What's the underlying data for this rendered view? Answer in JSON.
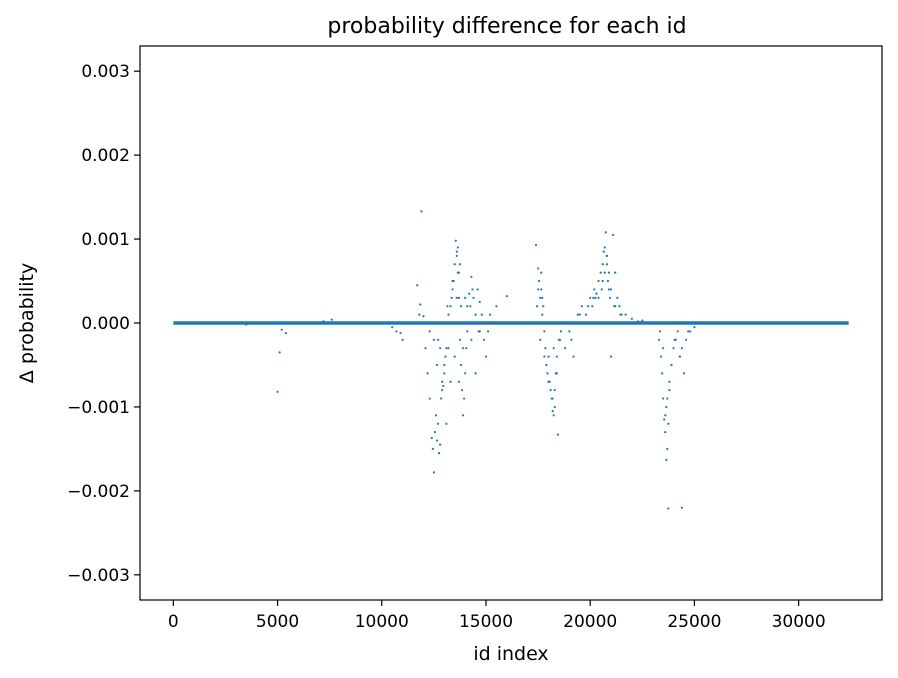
{
  "chart_data": {
    "type": "scatter",
    "title": "probability difference for each id",
    "xlabel": "id index",
    "ylabel": "Δ probability",
    "xlim": [
      -1600,
      34000
    ],
    "ylim": [
      -0.0033,
      0.0033
    ],
    "xticks": [
      0,
      5000,
      10000,
      15000,
      20000,
      25000,
      30000
    ],
    "xtick_labels": [
      "0",
      "5000",
      "10000",
      "15000",
      "20000",
      "25000",
      "30000"
    ],
    "yticks": [
      -0.003,
      -0.002,
      -0.001,
      0.0,
      0.001,
      0.002,
      0.003
    ],
    "ytick_labels": [
      "−0.003",
      "−0.002",
      "−0.001",
      "0.000",
      "0.001",
      "0.002",
      "0.003"
    ],
    "grid": false,
    "legend": "none",
    "marker_color": "#1f77b4",
    "baseline": {
      "x_start": 0,
      "x_end": 32400,
      "y": 0.0
    },
    "series": [
      {
        "x": [
          5000,
          5100,
          5200,
          5400,
          7200,
          7600,
          3500,
          10500,
          10700,
          10900,
          11000,
          11700,
          11850,
          11900,
          12000,
          12100,
          12200,
          12300,
          12400,
          12500,
          12550,
          12600,
          12650,
          12700,
          12750,
          12800,
          12850,
          12900,
          12950,
          13000,
          13050,
          13100,
          13200,
          13300,
          13400,
          13450,
          13500,
          13550,
          13600,
          13650,
          13700,
          13750,
          13800,
          13850,
          13900,
          13950,
          14000,
          14050,
          14100,
          14200,
          14300,
          14400,
          14500,
          14600,
          14700,
          14800,
          14900,
          15000,
          15100,
          15200,
          15500,
          16000,
          17400,
          17500,
          17550,
          17600,
          17650,
          17700,
          17750,
          17800,
          17850,
          17900,
          17950,
          18000,
          18050,
          18100,
          18150,
          18200,
          18250,
          18300,
          18350,
          18400,
          18450,
          18500,
          18600,
          18800,
          19000,
          19200,
          19400,
          19600,
          19800,
          20000,
          20100,
          20200,
          20300,
          20400,
          20500,
          20600,
          20650,
          20700,
          20750,
          20800,
          20850,
          20900,
          20950,
          21000,
          21100,
          21200,
          21300,
          21400,
          21500,
          21700,
          22000,
          22300,
          23300,
          23400,
          23450,
          23500,
          23550,
          23600,
          23650,
          23700,
          23750,
          23800,
          23900,
          24000,
          24100,
          24200,
          24300,
          24400,
          24500,
          24600,
          24800,
          25000,
          12500,
          12650,
          12900,
          13100,
          13300,
          13500,
          13700,
          13900,
          14100,
          14300,
          14500,
          14700,
          12800,
          13000,
          13200,
          13400,
          13600,
          13800,
          14000,
          17600,
          17800,
          18000,
          18200,
          18400,
          20400,
          20600,
          20800,
          21000,
          21200,
          23500,
          23700,
          23900,
          24100,
          24300,
          13650,
          13750,
          13600,
          13700,
          20700,
          20900,
          20800,
          17500,
          17700,
          18300,
          23600,
          23800,
          11800,
          12300,
          12700,
          13350,
          14250,
          14650,
          17450,
          18250,
          18550,
          19100,
          19500,
          19900,
          20150,
          20550,
          21150,
          21450,
          22500,
          23350,
          23650,
          24050,
          24700,
          12450,
          13150,
          14350,
          17650,
          20250
        ],
        "y": [
          -0.00082,
          -0.00035,
          -8e-05,
          -0.00012,
          2e-05,
          4e-05,
          -2e-05,
          -5e-05,
          -0.0001,
          -0.00012,
          -0.0002,
          0.00045,
          0.00022,
          0.00133,
          8e-05,
          -0.0003,
          -0.0006,
          -0.0009,
          -0.00137,
          -0.00178,
          -0.0013,
          -0.0011,
          -0.0014,
          -0.0012,
          -0.00155,
          -0.00145,
          -0.0009,
          -0.0007,
          -0.00075,
          -0.0005,
          -0.0004,
          -0.0003,
          0.0001,
          0.0002,
          0.0004,
          0.0005,
          0.0007,
          0.00098,
          0.00085,
          0.0006,
          0.0003,
          -0.0002,
          -0.0005,
          -0.0008,
          -0.0011,
          -0.0009,
          -0.0006,
          -0.0003,
          0.0002,
          0.00035,
          0.00055,
          0.0003,
          0.0001,
          0.0004,
          0.00025,
          0.0001,
          -0.0002,
          -0.0004,
          -0.0001,
          0.0001,
          0.0002,
          0.00032,
          0.00093,
          0.00065,
          0.0005,
          0.0003,
          0.0004,
          0.0001,
          0.0002,
          -0.0001,
          -0.0003,
          -0.0005,
          -0.0006,
          -0.0004,
          -0.0007,
          -0.0008,
          -0.0009,
          -0.00105,
          -0.0011,
          -0.001,
          -0.0006,
          -0.0004,
          -0.00133,
          -0.0002,
          -0.0001,
          -0.0003,
          -0.0001,
          -0.0004,
          0.0001,
          0.0002,
          0.0001,
          0.0003,
          0.0002,
          0.0004,
          0.00035,
          0.0005,
          0.0006,
          0.0007,
          0.00085,
          0.0006,
          0.00108,
          0.0008,
          0.0005,
          0.0004,
          0.0003,
          -0.0004,
          0.00105,
          0.0006,
          0.0003,
          0.0002,
          0.0001,
          0.0001,
          5e-05,
          2e-05,
          -0.0002,
          -0.0004,
          -0.0006,
          -0.0009,
          -0.00115,
          -0.0013,
          -0.00163,
          -0.0015,
          -0.0012,
          -0.0008,
          -0.0005,
          -0.0003,
          -0.0002,
          -0.0001,
          -0.0004,
          -0.0003,
          -0.0006,
          -0.0002,
          -0.0001,
          -5e-05,
          -0.0002,
          -0.0005,
          -0.0008,
          -0.0012,
          -0.0007,
          -0.0004,
          -0.0007,
          -0.0003,
          -0.0001,
          -0.0002,
          -0.0006,
          -0.0001,
          -0.0003,
          -0.0006,
          -0.0003,
          0.0005,
          0.0003,
          0.0002,
          0.0003,
          -0.0002,
          -0.0004,
          -0.0007,
          -0.0009,
          -0.0006,
          0.0003,
          0.0005,
          0.0007,
          0.0004,
          0.0002,
          -0.0003,
          -0.0009,
          -0.0005,
          -0.0002,
          -0.0004,
          0.0009,
          0.0007,
          0.0008,
          0.0006,
          0.0009,
          0.0006,
          0.0008,
          0.0004,
          0.0003,
          -0.0008,
          -0.0011,
          -0.0007,
          0.0001,
          -0.0001,
          -0.0002,
          0.0003,
          0.0002,
          -0.0001,
          0.0002,
          -0.0003,
          -0.0002,
          -0.0002,
          0.0001,
          0.0002,
          0.0003,
          0.0004,
          0.0002,
          0.0001,
          3e-05,
          -0.0001,
          -0.001,
          -0.0002,
          -0.0001,
          -0.0015,
          0.0002,
          0.0004,
          0.0006,
          0.0003
        ]
      },
      {
        "x": [
          23750,
          24400
        ],
        "y": [
          -0.00221,
          -0.0022
        ]
      }
    ]
  }
}
